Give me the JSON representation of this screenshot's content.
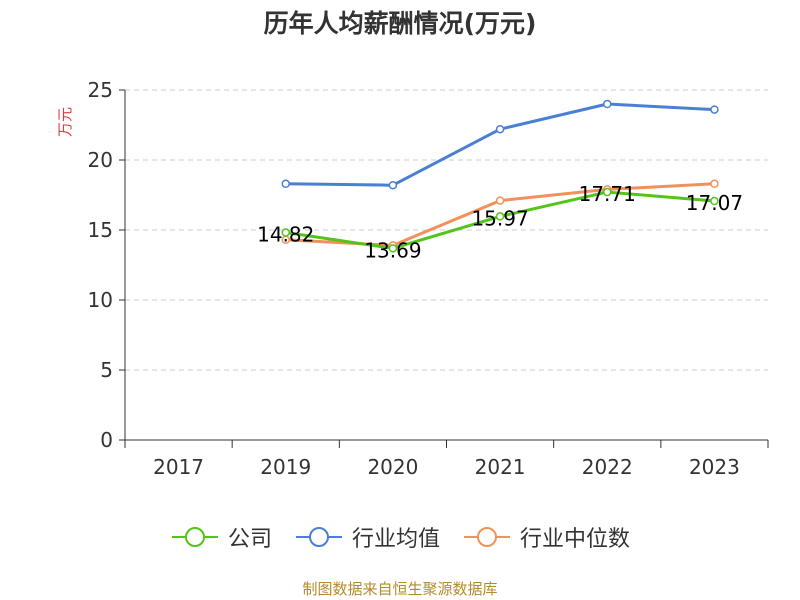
{
  "chart_data": {
    "type": "line",
    "title": "历年人均薪酬情况(万元)",
    "ylabel": "万元",
    "xlabel": "",
    "categories": [
      "2017",
      "2019",
      "2020",
      "2021",
      "2022",
      "2023"
    ],
    "ylim": [
      0,
      25
    ],
    "yticks": [
      "0",
      "5",
      "10",
      "15",
      "20",
      "25"
    ],
    "grid": true,
    "legend_position": "bottom",
    "series": [
      {
        "name": "公司",
        "color": "#52c41a",
        "values": [
          null,
          14.82,
          13.69,
          15.97,
          17.71,
          17.07
        ],
        "labels": [
          null,
          "14.82",
          "13.69",
          "15.97",
          "17.71",
          "17.07"
        ]
      },
      {
        "name": "行业均值",
        "color": "#4a7fd4",
        "values": [
          null,
          18.3,
          18.2,
          22.2,
          24.0,
          23.6
        ],
        "labels": [
          null,
          null,
          null,
          null,
          null,
          null
        ]
      },
      {
        "name": "行业中位数",
        "color": "#f2905b",
        "values": [
          null,
          14.3,
          13.9,
          17.1,
          17.9,
          18.3
        ],
        "labels": [
          null,
          null,
          null,
          null,
          null,
          null
        ]
      }
    ],
    "source": "制图数据来自恒生聚源数据库"
  }
}
